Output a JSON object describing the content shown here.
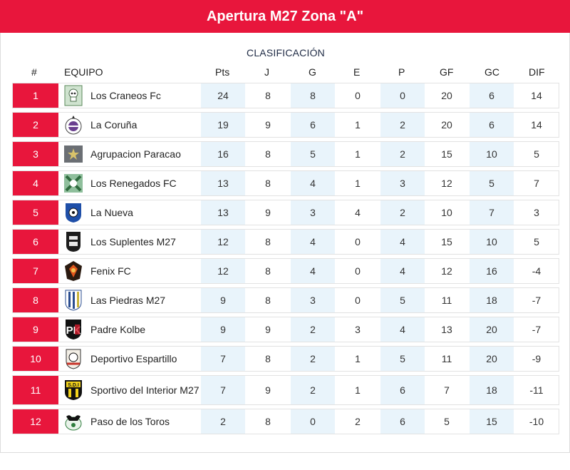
{
  "title": "Apertura M27 Zona \"A\"",
  "subtitle": "CLASIFICACIÓN",
  "columns": {
    "pos": "#",
    "team": "EQUIPO",
    "pts": "Pts",
    "j": "J",
    "g": "G",
    "e": "E",
    "p": "P",
    "gf": "GF",
    "gc": "GC",
    "dif": "DIF"
  },
  "colors": {
    "accent": "#e8163c",
    "shade": "#e9f4fb"
  },
  "standings": [
    {
      "pos": "1",
      "team": "Los Craneos Fc",
      "pts": "24",
      "j": "8",
      "g": "8",
      "e": "0",
      "p": "0",
      "gf": "20",
      "gc": "6",
      "dif": "14",
      "crest": "skull-crest-icon"
    },
    {
      "pos": "2",
      "team": "La Coruña",
      "pts": "19",
      "j": "9",
      "g": "6",
      "e": "1",
      "p": "2",
      "gf": "20",
      "gc": "6",
      "dif": "14",
      "crest": "coruna-crest-icon"
    },
    {
      "pos": "3",
      "team": "Agrupacion Paracao",
      "pts": "16",
      "j": "8",
      "g": "5",
      "e": "1",
      "p": "2",
      "gf": "15",
      "gc": "10",
      "dif": "5",
      "crest": "paracao-crest-icon"
    },
    {
      "pos": "4",
      "team": "Los Renegados FC",
      "pts": "13",
      "j": "8",
      "g": "4",
      "e": "1",
      "p": "3",
      "gf": "12",
      "gc": "5",
      "dif": "7",
      "crest": "renegados-crest-icon"
    },
    {
      "pos": "5",
      "team": "La Nueva",
      "pts": "13",
      "j": "9",
      "g": "3",
      "e": "4",
      "p": "2",
      "gf": "10",
      "gc": "7",
      "dif": "3",
      "crest": "nueva-crest-icon"
    },
    {
      "pos": "6",
      "team": "Los Suplentes M27",
      "pts": "12",
      "j": "8",
      "g": "4",
      "e": "0",
      "p": "4",
      "gf": "15",
      "gc": "10",
      "dif": "5",
      "crest": "suplentes-crest-icon"
    },
    {
      "pos": "7",
      "team": "Fenix FC",
      "pts": "12",
      "j": "8",
      "g": "4",
      "e": "0",
      "p": "4",
      "gf": "12",
      "gc": "16",
      "dif": "-4",
      "crest": "fenix-crest-icon"
    },
    {
      "pos": "8",
      "team": "Las Piedras M27",
      "pts": "9",
      "j": "8",
      "g": "3",
      "e": "0",
      "p": "5",
      "gf": "11",
      "gc": "18",
      "dif": "-7",
      "crest": "piedras-crest-icon"
    },
    {
      "pos": "9",
      "team": "Padre Kolbe",
      "pts": "9",
      "j": "9",
      "g": "2",
      "e": "3",
      "p": "4",
      "gf": "13",
      "gc": "20",
      "dif": "-7",
      "crest": "kolbe-crest-icon"
    },
    {
      "pos": "10",
      "team": "Deportivo Espartillo",
      "pts": "7",
      "j": "8",
      "g": "2",
      "e": "1",
      "p": "5",
      "gf": "11",
      "gc": "20",
      "dif": "-9",
      "crest": "espartillo-crest-icon"
    },
    {
      "pos": "11",
      "team": "Sportivo del Interior M27",
      "pts": "7",
      "j": "9",
      "g": "2",
      "e": "1",
      "p": "6",
      "gf": "7",
      "gc": "18",
      "dif": "-11",
      "crest": "sdi-crest-icon"
    },
    {
      "pos": "12",
      "team": "Paso de los Toros",
      "pts": "2",
      "j": "8",
      "g": "0",
      "e": "2",
      "p": "6",
      "gf": "5",
      "gc": "15",
      "dif": "-10",
      "crest": "toros-crest-icon"
    }
  ]
}
